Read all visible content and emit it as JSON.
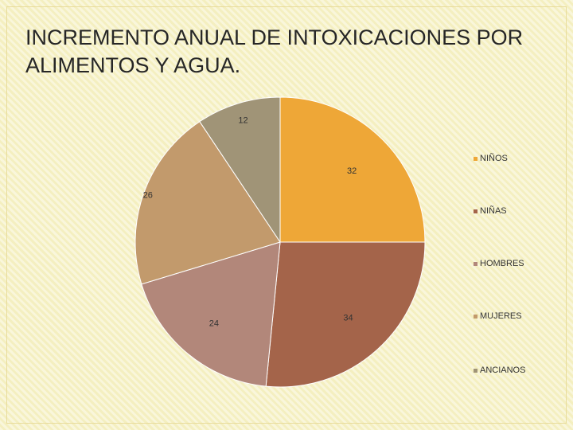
{
  "slide": {
    "title": "INCREMENTO ANUAL DE INTOXICACIONES POR ALIMENTOS Y AGUA."
  },
  "chart_data": {
    "type": "pie",
    "categories": [
      "NIÑOS",
      "NIÑAS",
      "HOMBRES",
      "MUJERES",
      "ANCIANOS"
    ],
    "values": [
      32,
      34,
      24,
      26,
      12
    ],
    "data_labels": [
      "32",
      "34",
      "24",
      "26",
      "12"
    ],
    "colors": [
      "#eea737",
      "#a4644a",
      "#b2877a",
      "#c29a6c",
      "#a09477"
    ],
    "legend_position": "right",
    "start_angle_deg": 0,
    "direction": "clockwise"
  }
}
